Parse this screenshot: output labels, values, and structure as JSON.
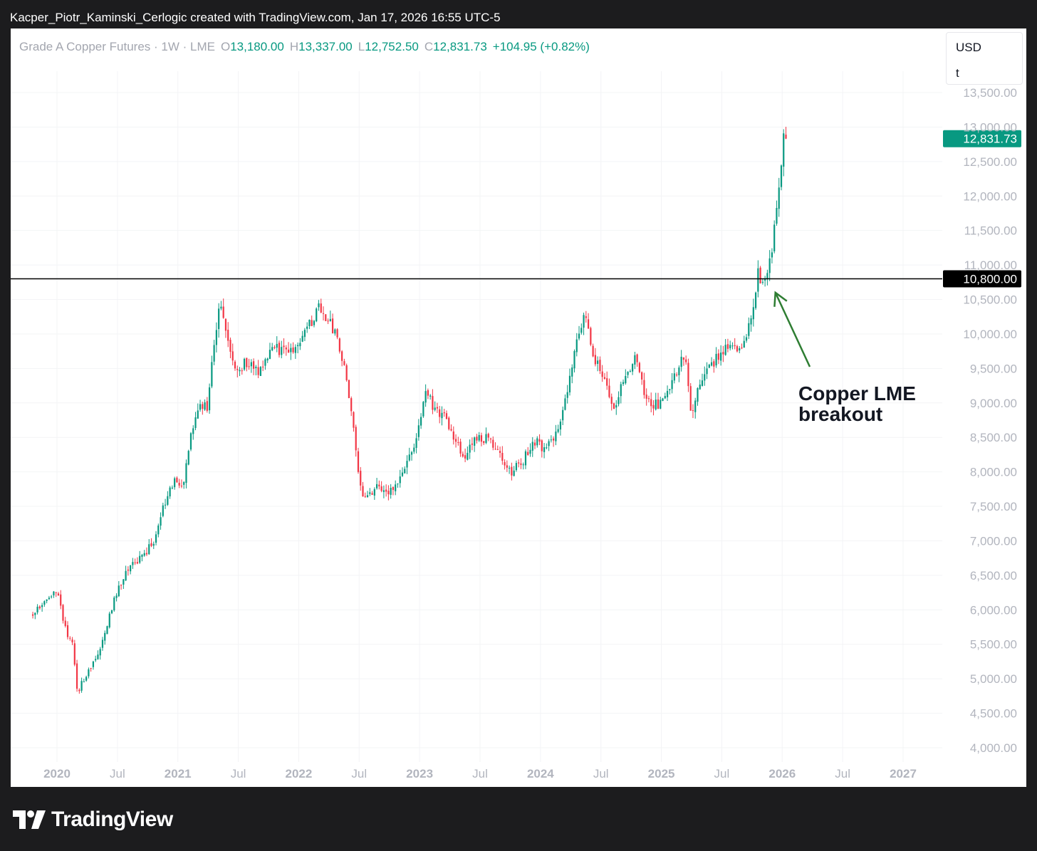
{
  "header": {
    "text": "Kacper_Piotr_Kaminski_Cerlogic created with TradingView.com, Jan 17, 2026 16:55 UTC-5"
  },
  "legend": {
    "symbol": "Grade A Copper Futures · 1W · LME",
    "o_label": "O",
    "o_value": "13,180.00",
    "h_label": "H",
    "h_value": "13,337.00",
    "l_label": "L",
    "l_value": "12,752.50",
    "c_label": "C",
    "c_value": "12,831.73",
    "change": "+104.95 (+0.82%)"
  },
  "unit_box": {
    "currency": "USD",
    "unit": "t"
  },
  "footer": {
    "brand": "TradingView"
  },
  "colors": {
    "up": "#089981",
    "down": "#f23645",
    "axis_text": "#b2b5be",
    "grid": "#f3f4f6",
    "annotation": "#2e7d32",
    "line": "#000000"
  },
  "chart_data": {
    "type": "candlestick",
    "title": "Grade A Copper Futures · 1W · LME",
    "ylim": [
      3800,
      13700
    ],
    "y_ticks": [
      "13,500.00",
      "13,000.00",
      "12,500.00",
      "12,000.00",
      "11,500.00",
      "11,000.00",
      "10,500.00",
      "10,000.00",
      "9,500.00",
      "9,000.00",
      "8,500.00",
      "8,000.00",
      "7,500.00",
      "7,000.00",
      "6,500.00",
      "6,000.00",
      "5,500.00",
      "5,000.00",
      "4,500.00",
      "4,000.00"
    ],
    "x_ticks": [
      {
        "label": "2020",
        "year": 2020.0,
        "bold": true
      },
      {
        "label": "Jul",
        "year": 2020.5,
        "bold": false
      },
      {
        "label": "2021",
        "year": 2021.0,
        "bold": true
      },
      {
        "label": "Jul",
        "year": 2021.5,
        "bold": false
      },
      {
        "label": "2022",
        "year": 2022.0,
        "bold": true
      },
      {
        "label": "Jul",
        "year": 2022.5,
        "bold": false
      },
      {
        "label": "2023",
        "year": 2023.0,
        "bold": true
      },
      {
        "label": "Jul",
        "year": 2023.5,
        "bold": false
      },
      {
        "label": "2024",
        "year": 2024.0,
        "bold": true
      },
      {
        "label": "Jul",
        "year": 2024.5,
        "bold": false
      },
      {
        "label": "2025",
        "year": 2025.0,
        "bold": true
      },
      {
        "label": "Jul",
        "year": 2025.5,
        "bold": false
      },
      {
        "label": "2026",
        "year": 2026.0,
        "bold": true
      },
      {
        "label": "Jul",
        "year": 2026.5,
        "bold": false
      },
      {
        "label": "2027",
        "year": 2027.0,
        "bold": true
      }
    ],
    "waypoints": [
      [
        2019.8,
        5950
      ],
      [
        2019.95,
        6200
      ],
      [
        2020.02,
        6250
      ],
      [
        2020.06,
        5750
      ],
      [
        2020.13,
        5500
      ],
      [
        2020.17,
        4800
      ],
      [
        2020.25,
        5100
      ],
      [
        2020.35,
        5400
      ],
      [
        2020.43,
        5900
      ],
      [
        2020.5,
        6300
      ],
      [
        2020.6,
        6650
      ],
      [
        2020.7,
        6750
      ],
      [
        2020.8,
        7000
      ],
      [
        2020.9,
        7600
      ],
      [
        2020.97,
        7900
      ],
      [
        2021.05,
        7800
      ],
      [
        2021.1,
        8500
      ],
      [
        2021.18,
        9000
      ],
      [
        2021.25,
        8950
      ],
      [
        2021.3,
        9900
      ],
      [
        2021.35,
        10500
      ],
      [
        2021.42,
        9800
      ],
      [
        2021.48,
        9400
      ],
      [
        2021.55,
        9600
      ],
      [
        2021.65,
        9450
      ],
      [
        2021.75,
        9700
      ],
      [
        2021.82,
        9800
      ],
      [
        2021.9,
        9700
      ],
      [
        2021.98,
        9800
      ],
      [
        2022.08,
        10100
      ],
      [
        2022.17,
        10400
      ],
      [
        2022.25,
        10200
      ],
      [
        2022.32,
        9900
      ],
      [
        2022.38,
        9500
      ],
      [
        2022.45,
        8700
      ],
      [
        2022.52,
        7600
      ],
      [
        2022.58,
        7600
      ],
      [
        2022.65,
        7900
      ],
      [
        2022.72,
        7650
      ],
      [
        2022.8,
        7800
      ],
      [
        2022.88,
        8100
      ],
      [
        2022.97,
        8400
      ],
      [
        2023.05,
        9200
      ],
      [
        2023.12,
        8900
      ],
      [
        2023.2,
        8850
      ],
      [
        2023.3,
        8400
      ],
      [
        2023.38,
        8200
      ],
      [
        2023.45,
        8450
      ],
      [
        2023.55,
        8500
      ],
      [
        2023.65,
        8350
      ],
      [
        2023.75,
        8000
      ],
      [
        2023.85,
        8150
      ],
      [
        2023.95,
        8450
      ],
      [
        2024.05,
        8300
      ],
      [
        2024.15,
        8700
      ],
      [
        2024.25,
        9400
      ],
      [
        2024.32,
        10100
      ],
      [
        2024.37,
        10300
      ],
      [
        2024.45,
        9600
      ],
      [
        2024.52,
        9400
      ],
      [
        2024.6,
        8900
      ],
      [
        2024.7,
        9350
      ],
      [
        2024.78,
        9700
      ],
      [
        2024.85,
        9200
      ],
      [
        2024.92,
        8950
      ],
      [
        2025.0,
        9000
      ],
      [
        2025.1,
        9400
      ],
      [
        2025.2,
        9700
      ],
      [
        2025.25,
        8800
      ],
      [
        2025.3,
        9200
      ],
      [
        2025.38,
        9500
      ],
      [
        2025.48,
        9700
      ],
      [
        2025.55,
        9850
      ],
      [
        2025.62,
        9750
      ],
      [
        2025.7,
        9900
      ],
      [
        2025.76,
        10400
      ],
      [
        2025.8,
        10900
      ],
      [
        2025.84,
        10700
      ],
      [
        2025.88,
        10900
      ],
      [
        2025.92,
        11200
      ],
      [
        2025.94,
        11600
      ],
      [
        2025.97,
        12000
      ],
      [
        2026.0,
        12600
      ],
      [
        2026.02,
        13000
      ],
      [
        2026.04,
        12831
      ]
    ],
    "last_price": 12831.73,
    "last_price_label": "12,831.73",
    "horizontal_level": 10800,
    "horizontal_level_label": "10,800.00",
    "annotation": {
      "line1": "Copper LME",
      "line2": "breakout",
      "arrow_target": [
        2025.92,
        10600
      ]
    }
  }
}
